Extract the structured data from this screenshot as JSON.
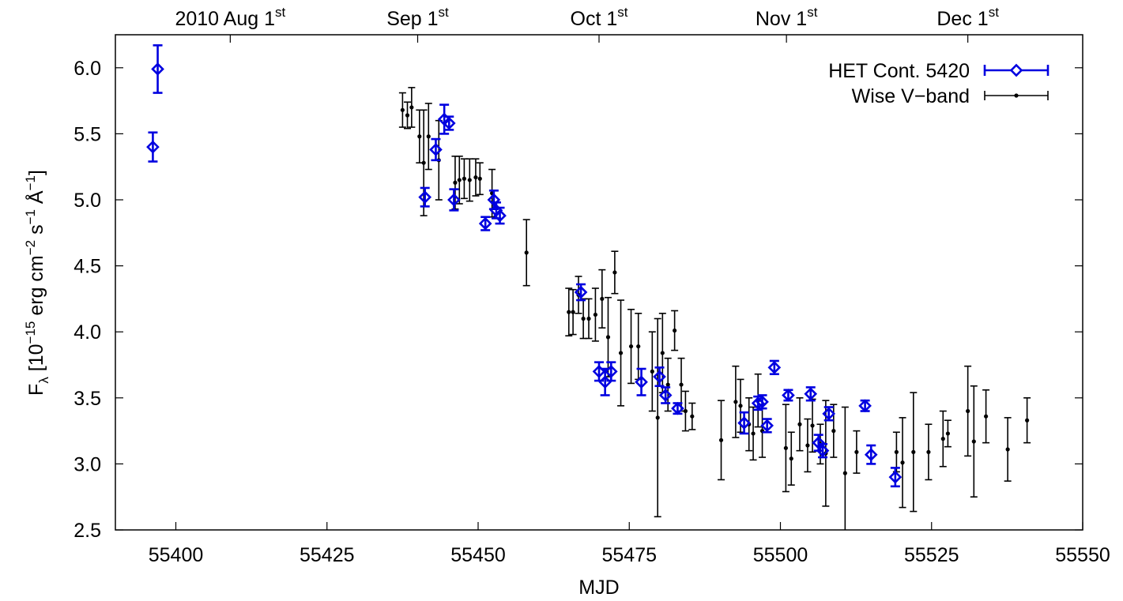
{
  "chart_data": {
    "type": "scatter",
    "xlabel": "MJD",
    "ylabel": {
      "main": "F",
      "sub": "λ",
      "rest": " [10",
      "e1": "−15",
      "r2": " erg cm",
      "e2": "−2",
      "r3": " s",
      "e3": "−1",
      "r4": " Å",
      "e4": "−1",
      "r5": "]"
    },
    "xlim": [
      55390,
      55550
    ],
    "ylim": [
      2.5,
      6.25
    ],
    "x_ticks": [
      "55400",
      "55425",
      "55450",
      "55475",
      "55500",
      "55525",
      "55550"
    ],
    "x_tick_values": [
      55400,
      55425,
      55450,
      55475,
      55500,
      55525,
      55550
    ],
    "y_ticks": [
      "2.5",
      "3.0",
      "3.5",
      "4.0",
      "4.5",
      "5.0",
      "5.5",
      "6.0"
    ],
    "y_tick_values": [
      2.5,
      3.0,
      3.5,
      4.0,
      4.5,
      5.0,
      5.5,
      6.0
    ],
    "top_axis": [
      {
        "label": "2010 Aug 1",
        "sup": "st",
        "x": 55409
      },
      {
        "label": "Sep 1",
        "sup": "st",
        "x": 55440
      },
      {
        "label": "Oct 1",
        "sup": "st",
        "x": 55470
      },
      {
        "label": "Nov 1",
        "sup": "st",
        "x": 55501
      },
      {
        "label": "Dec 1",
        "sup": "st",
        "x": 55531
      }
    ],
    "legend_position": "top-right",
    "series": [
      {
        "name": "HET Cont. 5420",
        "color": "#0000e0",
        "marker": "diamond",
        "points": [
          [
            55396.2,
            5.4,
            0.11
          ],
          [
            55397.0,
            5.99,
            0.18
          ],
          [
            55441.2,
            5.02,
            0.07
          ],
          [
            55443.0,
            5.38,
            0.08
          ],
          [
            55444.4,
            5.61,
            0.11
          ],
          [
            55445.2,
            5.58,
            0.05
          ],
          [
            55446.0,
            5.0,
            0.08
          ],
          [
            55451.2,
            4.82,
            0.05
          ],
          [
            55452.6,
            5.0,
            0.07
          ],
          [
            55453.0,
            4.92,
            0.06
          ],
          [
            55453.6,
            4.88,
            0.06
          ],
          [
            55467.0,
            4.3,
            0.06
          ],
          [
            55470.0,
            3.7,
            0.07
          ],
          [
            55471.0,
            3.62,
            0.1
          ],
          [
            55472.0,
            3.7,
            0.07
          ],
          [
            55477.0,
            3.62,
            0.1
          ],
          [
            55480.0,
            3.66,
            0.07
          ],
          [
            55481.0,
            3.52,
            0.06
          ],
          [
            55483.0,
            3.42,
            0.04
          ],
          [
            55494.0,
            3.31,
            0.08
          ],
          [
            55496.3,
            3.46,
            0.05
          ],
          [
            55497.0,
            3.47,
            0.05
          ],
          [
            55497.8,
            3.29,
            0.05
          ],
          [
            55499.0,
            3.73,
            0.05
          ],
          [
            55501.3,
            3.52,
            0.04
          ],
          [
            55505.0,
            3.53,
            0.05
          ],
          [
            55506.3,
            3.16,
            0.06
          ],
          [
            55507.0,
            3.1,
            0.05
          ],
          [
            55508.0,
            3.38,
            0.05
          ],
          [
            55514.0,
            3.44,
            0.04
          ],
          [
            55515.0,
            3.07,
            0.07
          ],
          [
            55519.0,
            2.9,
            0.07
          ]
        ]
      },
      {
        "name": "Wise V−band",
        "color": "#000000",
        "marker": "dot",
        "points": [
          [
            55437.5,
            5.68,
            0.13
          ],
          [
            55438.3,
            5.64,
            0.1
          ],
          [
            55439.0,
            5.7,
            0.15
          ],
          [
            55440.3,
            5.48,
            0.2
          ],
          [
            55441.0,
            5.28,
            0.4
          ],
          [
            55441.8,
            5.48,
            0.25
          ],
          [
            55443.5,
            5.3,
            0.3
          ],
          [
            55446.2,
            5.13,
            0.2
          ],
          [
            55446.9,
            5.15,
            0.18
          ],
          [
            55447.7,
            5.16,
            0.15
          ],
          [
            55448.6,
            5.15,
            0.16
          ],
          [
            55449.6,
            5.17,
            0.14
          ],
          [
            55450.3,
            5.16,
            0.12
          ],
          [
            55452.3,
            5.05,
            0.18
          ],
          [
            55458.0,
            4.6,
            0.25
          ],
          [
            55465.0,
            4.15,
            0.18
          ],
          [
            55465.7,
            4.15,
            0.17
          ],
          [
            55466.6,
            4.28,
            0.14
          ],
          [
            55467.4,
            4.1,
            0.15
          ],
          [
            55468.3,
            4.1,
            0.15
          ],
          [
            55469.4,
            4.13,
            0.2
          ],
          [
            55470.5,
            4.25,
            0.22
          ],
          [
            55471.5,
            3.96,
            0.3
          ],
          [
            55472.6,
            4.45,
            0.16
          ],
          [
            55473.6,
            3.84,
            0.4
          ],
          [
            55475.3,
            3.89,
            0.28
          ],
          [
            55476.5,
            3.89,
            0.25
          ],
          [
            55478.8,
            3.7,
            0.3
          ],
          [
            55479.7,
            3.35,
            0.75
          ],
          [
            55480.5,
            3.84,
            0.3
          ],
          [
            55481.4,
            3.6,
            0.2
          ],
          [
            55482.5,
            4.01,
            0.15
          ],
          [
            55483.6,
            3.6,
            0.2
          ],
          [
            55484.3,
            3.4,
            0.15
          ],
          [
            55485.4,
            3.36,
            0.1
          ],
          [
            55490.2,
            3.18,
            0.3
          ],
          [
            55492.6,
            3.47,
            0.27
          ],
          [
            55493.4,
            3.44,
            0.2
          ],
          [
            55494.8,
            3.3,
            0.2
          ],
          [
            55495.5,
            3.23,
            0.2
          ],
          [
            55496.3,
            3.48,
            0.2
          ],
          [
            55497.0,
            3.25,
            0.2
          ],
          [
            55500.9,
            3.12,
            0.33
          ],
          [
            55501.8,
            3.04,
            0.2
          ],
          [
            55503.2,
            3.3,
            0.2
          ],
          [
            55504.5,
            3.14,
            0.2
          ],
          [
            55505.3,
            3.29,
            0.2
          ],
          [
            55506.6,
            3.15,
            0.15
          ],
          [
            55507.5,
            3.08,
            0.4
          ],
          [
            55508.8,
            3.25,
            0.2
          ],
          [
            55510.7,
            2.93,
            0.5
          ],
          [
            55512.6,
            3.09,
            0.16
          ],
          [
            55519.2,
            3.09,
            0.15
          ],
          [
            55520.2,
            3.01,
            0.34
          ],
          [
            55522.0,
            3.09,
            0.45
          ],
          [
            55524.5,
            3.09,
            0.21
          ],
          [
            55526.9,
            3.19,
            0.21
          ],
          [
            55527.7,
            3.23,
            0.1
          ],
          [
            55531.0,
            3.4,
            0.34
          ],
          [
            55532.0,
            3.17,
            0.42
          ],
          [
            55534.0,
            3.36,
            0.2
          ],
          [
            55537.6,
            3.11,
            0.24
          ],
          [
            55540.8,
            3.33,
            0.17
          ]
        ]
      }
    ]
  }
}
